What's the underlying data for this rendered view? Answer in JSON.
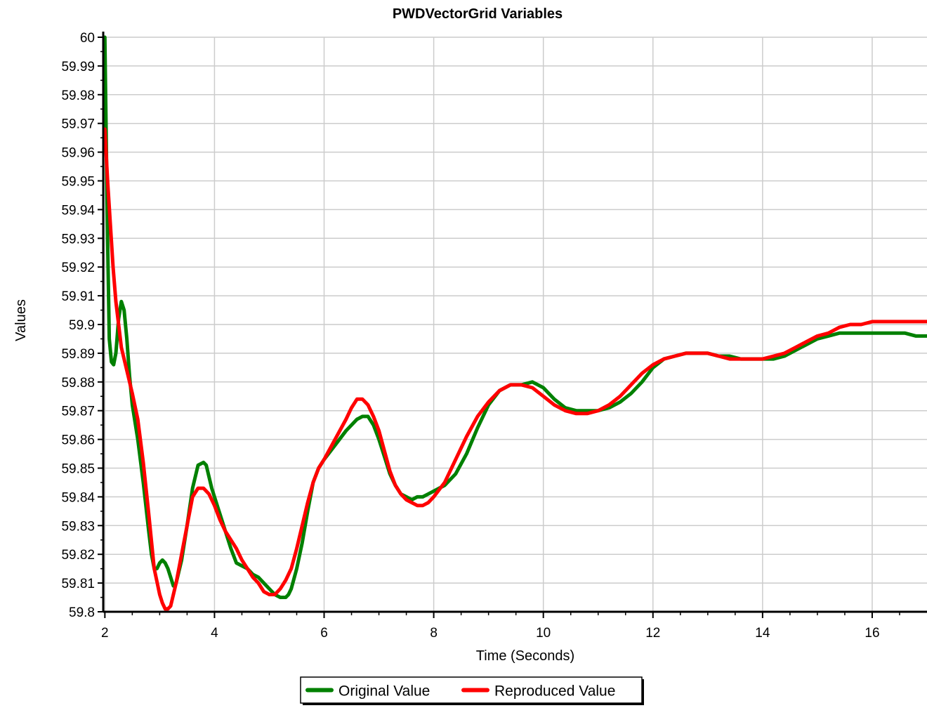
{
  "chart_data": {
    "type": "line",
    "title": "PWDVectorGrid Variables",
    "xlabel": "Time (Seconds)",
    "ylabel": "Values",
    "xlim": [
      1.97,
      17.0
    ],
    "ylim": [
      59.8,
      60.0
    ],
    "x_ticks": [
      2,
      4,
      6,
      8,
      10,
      12,
      14,
      16
    ],
    "y_ticks": [
      59.8,
      59.81,
      59.82,
      59.83,
      59.84,
      59.85,
      59.86,
      59.87,
      59.88,
      59.89,
      59.9,
      59.91,
      59.92,
      59.93,
      59.94,
      59.95,
      59.96,
      59.97,
      59.98,
      59.99,
      60
    ],
    "y_tick_labels": [
      "59.8",
      "59.81",
      "59.82",
      "59.83",
      "59.84",
      "59.85",
      "59.86",
      "59.87",
      "59.88",
      "59.89",
      "59.9",
      "59.91",
      "59.92",
      "59.93",
      "59.94",
      "59.95",
      "59.96",
      "59.97",
      "59.98",
      "59.99",
      "60"
    ],
    "grid": true,
    "legend_position": "bottom-center",
    "series": [
      {
        "name": "Original Value",
        "color": "#008000",
        "x": [
          2.0,
          2.05,
          2.08,
          2.12,
          2.16,
          2.2,
          2.25,
          2.3,
          2.35,
          2.4,
          2.45,
          2.5,
          2.6,
          2.7,
          2.8,
          2.85,
          2.9,
          2.95,
          3.0,
          3.05,
          3.1,
          3.15,
          3.2,
          3.25,
          3.3,
          3.4,
          3.5,
          3.6,
          3.7,
          3.8,
          3.85,
          3.9,
          3.95,
          4.0,
          4.1,
          4.2,
          4.3,
          4.4,
          4.5,
          4.6,
          4.7,
          4.8,
          4.9,
          5.0,
          5.1,
          5.2,
          5.3,
          5.35,
          5.4,
          5.5,
          5.6,
          5.7,
          5.8,
          5.9,
          6.0,
          6.2,
          6.4,
          6.6,
          6.7,
          6.8,
          6.9,
          7.0,
          7.1,
          7.2,
          7.3,
          7.4,
          7.5,
          7.6,
          7.7,
          7.8,
          7.9,
          8.0,
          8.2,
          8.4,
          8.6,
          8.8,
          9.0,
          9.2,
          9.4,
          9.6,
          9.8,
          10.0,
          10.2,
          10.4,
          10.6,
          10.8,
          11.0,
          11.2,
          11.4,
          11.6,
          11.8,
          12.0,
          12.2,
          12.4,
          12.6,
          12.8,
          13.0,
          13.2,
          13.4,
          13.6,
          13.8,
          14.0,
          14.2,
          14.4,
          14.6,
          14.8,
          15.0,
          15.2,
          15.4,
          15.6,
          15.8,
          16.0,
          16.2,
          16.4,
          16.6,
          16.8,
          17.0
        ],
        "values": [
          60.0,
          59.93,
          59.895,
          59.887,
          59.886,
          59.89,
          59.902,
          59.908,
          59.905,
          59.895,
          59.882,
          59.872,
          59.86,
          59.845,
          59.828,
          59.82,
          59.815,
          59.815,
          59.817,
          59.818,
          59.817,
          59.815,
          59.812,
          59.809,
          59.81,
          59.818,
          59.83,
          59.843,
          59.851,
          59.852,
          59.851,
          59.847,
          59.843,
          59.84,
          59.834,
          59.828,
          59.822,
          59.817,
          59.816,
          59.815,
          59.813,
          59.812,
          59.81,
          59.808,
          59.806,
          59.805,
          59.805,
          59.806,
          59.808,
          59.815,
          59.824,
          59.835,
          59.845,
          59.85,
          59.853,
          59.858,
          59.863,
          59.867,
          59.868,
          59.868,
          59.865,
          59.86,
          59.854,
          59.848,
          59.844,
          59.841,
          59.84,
          59.839,
          59.84,
          59.84,
          59.841,
          59.842,
          59.844,
          59.848,
          59.855,
          59.864,
          59.872,
          59.877,
          59.879,
          59.879,
          59.88,
          59.878,
          59.874,
          59.871,
          59.87,
          59.87,
          59.87,
          59.871,
          59.873,
          59.876,
          59.88,
          59.885,
          59.888,
          59.889,
          59.89,
          59.89,
          59.89,
          59.889,
          59.889,
          59.888,
          59.888,
          59.888,
          59.888,
          59.889,
          59.891,
          59.893,
          59.895,
          59.896,
          59.897,
          59.897,
          59.897,
          59.897,
          59.897,
          59.897,
          59.897,
          59.896,
          59.896
        ]
      },
      {
        "name": "Reproduced Value",
        "color": "#ff0000",
        "x": [
          2.0,
          2.05,
          2.1,
          2.15,
          2.2,
          2.3,
          2.4,
          2.5,
          2.6,
          2.7,
          2.8,
          2.9,
          3.0,
          3.05,
          3.1,
          3.15,
          3.2,
          3.25,
          3.3,
          3.4,
          3.5,
          3.6,
          3.7,
          3.8,
          3.9,
          4.0,
          4.1,
          4.2,
          4.3,
          4.4,
          4.5,
          4.6,
          4.7,
          4.8,
          4.9,
          5.0,
          5.05,
          5.1,
          5.2,
          5.3,
          5.4,
          5.5,
          5.6,
          5.7,
          5.8,
          5.9,
          6.0,
          6.2,
          6.4,
          6.5,
          6.6,
          6.7,
          6.8,
          6.9,
          7.0,
          7.1,
          7.2,
          7.3,
          7.4,
          7.5,
          7.6,
          7.7,
          7.8,
          7.9,
          8.0,
          8.2,
          8.4,
          8.6,
          8.8,
          9.0,
          9.2,
          9.4,
          9.6,
          9.8,
          10.0,
          10.2,
          10.4,
          10.6,
          10.8,
          11.0,
          11.2,
          11.4,
          11.6,
          11.8,
          12.0,
          12.2,
          12.4,
          12.6,
          12.8,
          13.0,
          13.2,
          13.4,
          13.6,
          13.8,
          14.0,
          14.2,
          14.4,
          14.6,
          14.8,
          15.0,
          15.2,
          15.4,
          15.6,
          15.8,
          16.0,
          16.2,
          16.4,
          16.6,
          16.8,
          17.0
        ],
        "values": [
          59.968,
          59.95,
          59.935,
          59.92,
          59.908,
          59.892,
          59.884,
          59.876,
          59.867,
          59.852,
          59.834,
          59.815,
          59.806,
          59.803,
          59.801,
          59.801,
          59.802,
          59.806,
          59.81,
          59.82,
          59.83,
          59.84,
          59.843,
          59.843,
          59.841,
          59.837,
          59.832,
          59.828,
          59.825,
          59.822,
          59.818,
          59.815,
          59.812,
          59.81,
          59.807,
          59.806,
          59.806,
          59.806,
          59.808,
          59.811,
          59.815,
          59.822,
          59.83,
          59.838,
          59.845,
          59.85,
          59.853,
          59.86,
          59.867,
          59.871,
          59.874,
          59.874,
          59.872,
          59.868,
          59.863,
          59.856,
          59.849,
          59.844,
          59.841,
          59.839,
          59.838,
          59.837,
          59.837,
          59.838,
          59.84,
          59.845,
          59.853,
          59.861,
          59.868,
          59.873,
          59.877,
          59.879,
          59.879,
          59.878,
          59.875,
          59.872,
          59.87,
          59.869,
          59.869,
          59.87,
          59.872,
          59.875,
          59.879,
          59.883,
          59.886,
          59.888,
          59.889,
          59.89,
          59.89,
          59.89,
          59.889,
          59.888,
          59.888,
          59.888,
          59.888,
          59.889,
          59.89,
          59.892,
          59.894,
          59.896,
          59.897,
          59.899,
          59.9,
          59.9,
          59.901,
          59.901,
          59.901,
          59.901,
          59.901,
          59.901
        ]
      }
    ]
  }
}
